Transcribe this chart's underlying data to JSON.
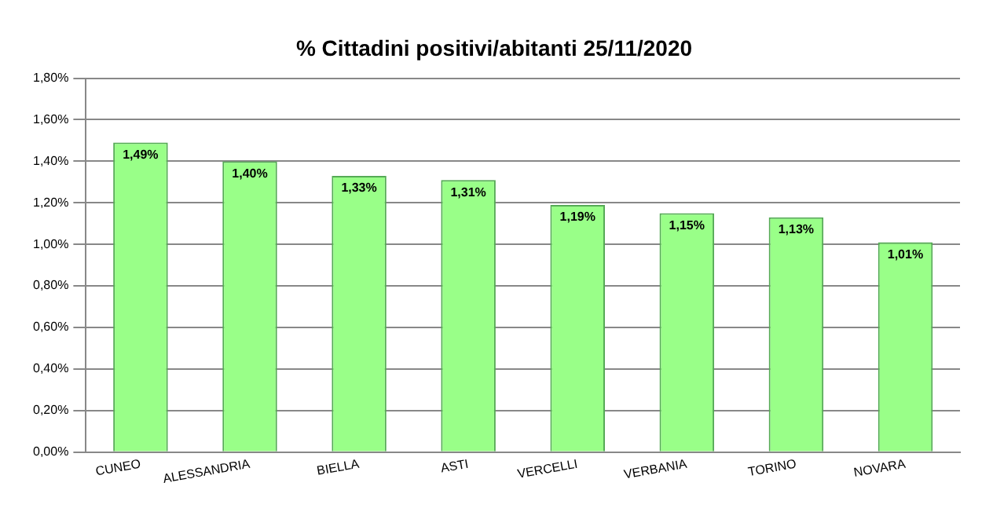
{
  "chart_data": {
    "type": "bar",
    "title": "% Cittadini positivi/abitanti 25/11/2020",
    "categories": [
      "CUNEO",
      "ALESSANDRIA",
      "BIELLA",
      "ASTI",
      "VERCELLI",
      "VERBANIA",
      "TORINO",
      "NOVARA"
    ],
    "values": [
      1.49,
      1.4,
      1.33,
      1.31,
      1.19,
      1.15,
      1.13,
      1.01
    ],
    "value_labels": [
      "1,49%",
      "1,40%",
      "1,33%",
      "1,31%",
      "1,19%",
      "1,15%",
      "1,13%",
      "1,01%"
    ],
    "color": "#99ff88",
    "ylim": [
      0,
      1.8
    ],
    "yticks": [
      {
        "value": 0,
        "label": "0,00%"
      },
      {
        "value": 0.2,
        "label": "0,20%"
      },
      {
        "value": 0.4,
        "label": "0,40%"
      },
      {
        "value": 0.6,
        "label": "0,60%"
      },
      {
        "value": 0.8,
        "label": "0,80%"
      },
      {
        "value": 1.0,
        "label": "1,00%"
      },
      {
        "value": 1.2,
        "label": "1,20%"
      },
      {
        "value": 1.4,
        "label": "1,40%"
      },
      {
        "value": 1.6,
        "label": "1,60%"
      },
      {
        "value": 1.8,
        "label": "1,80%"
      }
    ],
    "grid": "y",
    "legend": false
  }
}
